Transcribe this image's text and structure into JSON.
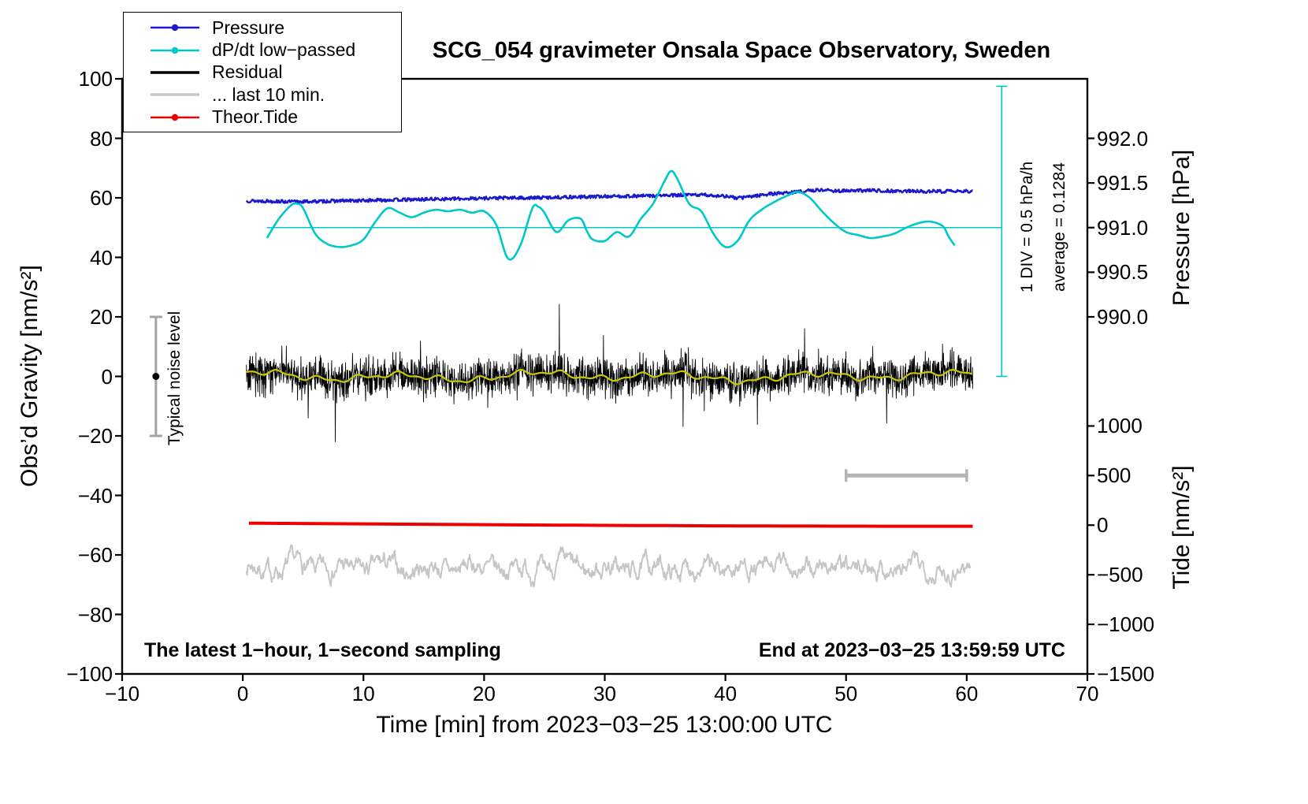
{
  "title": "SCG_054 gravimeter Onsala Space Observatory, Sweden",
  "chart_data": {
    "type": "line",
    "title": "SCG_054 gravimeter Onsala Space Observatory, Sweden",
    "x_unit": "minutes from 2023-03-25 13:00:00 UTC",
    "axes": {
      "x": {
        "label": "Time [min] from 2023−03−25 13:00:00 UTC",
        "min": -10,
        "max": 70,
        "ticks": [
          -10,
          0,
          10,
          20,
          30,
          40,
          50,
          60,
          70
        ],
        "tick_labels": [
          "−10",
          "0",
          "10",
          "20",
          "30",
          "40",
          "50",
          "60",
          "70"
        ]
      },
      "y_left": {
        "label": "Obs’d Gravity [nm/s²]",
        "min": -100,
        "max": 100,
        "ticks": [
          -100,
          -80,
          -60,
          -40,
          -20,
          0,
          20,
          40,
          60,
          80,
          100
        ],
        "tick_labels": [
          "−100",
          "−80",
          "−60",
          "−40",
          "−20",
          "0",
          "20",
          "40",
          "60",
          "80",
          "100"
        ]
      },
      "y_right_pressure": {
        "label": "Pressure [hPa]",
        "tick_labels": [
          "992.0",
          "991.5",
          "991.0",
          "990.5",
          "990.0"
        ],
        "tick_values_hPa": [
          992.0,
          991.5,
          991.0,
          990.5,
          990.0
        ],
        "gravity_positions": [
          80,
          65,
          50,
          35,
          20
        ]
      },
      "y_right_tide": {
        "label": "Tide [nm/s²]",
        "tick_labels": [
          "1000",
          "500",
          "0",
          "−500",
          "−1000",
          "−1500"
        ],
        "tick_values": [
          1000,
          500,
          0,
          -500,
          -1000,
          -1500
        ],
        "gravity_positions": [
          -16.67,
          -33.33,
          -50,
          -66.67,
          -83.33,
          -100
        ]
      }
    },
    "legend": {
      "items": [
        {
          "label": "Pressure",
          "color": "#1a1acc",
          "marker": "line-dot"
        },
        {
          "label": "dP/dt low−passed",
          "color": "#00c8c8",
          "marker": "line-dot"
        },
        {
          "label": "Residual",
          "color": "#000000",
          "marker": "line"
        },
        {
          "label": "... last 10 min.",
          "color": "#c6c6c6",
          "marker": "line"
        },
        {
          "label": "Theor.Tide",
          "color": "#ee0000",
          "marker": "line-dot"
        }
      ]
    },
    "annotations": {
      "noise_bar": {
        "label": "Typical noise level",
        "x": -7.2,
        "y_min": -20,
        "y_max": 20,
        "dot_y": 0,
        "color": "#a3a3a3"
      },
      "div_marker": {
        "line1": "1 DIV = 0.5 hPa/h",
        "line2": "average = 0.1284",
        "x": 62.9,
        "y_min": 0,
        "y_max": 97.5,
        "color": "#00c8c8"
      },
      "dpdt_zero_line": {
        "y": 50,
        "x_min": 2,
        "x_max": 62.9,
        "color": "#00c8c8"
      },
      "scale_bar": {
        "x_min": 50,
        "x_max": 60,
        "y": -33.3,
        "color": "#b4b4b4"
      },
      "sampling_note": "The latest 1−hour, 1−second sampling",
      "end_note": "End at 2023−03−25 13:59:59 UTC"
    },
    "series": [
      {
        "name": "Pressure",
        "unit": "hPa",
        "axis": "right_pressure",
        "color": "#1a1acc",
        "style": "dense dotted line",
        "gravity_map": "gravity = 50 + (hPa − 991) × 30",
        "x": [
          0.3,
          2,
          4,
          6,
          8,
          10,
          12,
          14,
          16,
          18,
          20,
          22,
          24,
          26,
          28,
          30,
          32,
          34,
          36,
          38,
          40,
          41,
          42,
          43,
          44,
          45,
          46,
          47,
          48,
          49,
          50,
          52,
          54,
          56,
          58,
          60.5
        ],
        "values": [
          991.3,
          991.297,
          991.29,
          991.293,
          991.3,
          991.303,
          991.31,
          991.313,
          991.32,
          991.323,
          991.33,
          991.333,
          991.333,
          991.34,
          991.343,
          991.35,
          991.353,
          991.357,
          991.363,
          991.367,
          991.353,
          991.33,
          991.347,
          991.367,
          991.38,
          991.39,
          991.4,
          991.413,
          991.423,
          991.413,
          991.41,
          991.417,
          991.41,
          991.407,
          991.407,
          991.407
        ],
        "scatter_noise_hPa": 0.018
      },
      {
        "name": "dP/dt low-passed",
        "unit": "hPa/h",
        "axis": "gravity axis, zero line at gravity 50, 1 DIV = 0.5 hPa/h (15 gravity units)",
        "color": "#00c8c8",
        "average": 0.1284,
        "gravity_map": "gravity = 50 + value × 30",
        "x": [
          2,
          3,
          4,
          4.5,
          5,
          6,
          7,
          8,
          9,
          10,
          11,
          12,
          13,
          14,
          15,
          16,
          17,
          18,
          19,
          20,
          21,
          22,
          23,
          24,
          24.5,
          25,
          26,
          27,
          28,
          28.5,
          29,
          30,
          31,
          32,
          33,
          34,
          35,
          35.5,
          36,
          37,
          38,
          39,
          40,
          41,
          42,
          43,
          44,
          45,
          46,
          47,
          48,
          49,
          50,
          51,
          52,
          53,
          54,
          55,
          56,
          57,
          58,
          58.5,
          59
        ],
        "values": [
          -0.117,
          0.1,
          0.25,
          0.267,
          0.217,
          -0.067,
          -0.183,
          -0.217,
          -0.2,
          -0.133,
          0.067,
          0.217,
          0.167,
          0.117,
          0.167,
          0.2,
          0.183,
          0.2,
          0.167,
          0.183,
          0.033,
          -0.35,
          -0.2,
          0.217,
          0.233,
          0.167,
          -0.05,
          0.083,
          0.1,
          -0.033,
          -0.133,
          -0.15,
          -0.05,
          -0.1,
          0.1,
          0.267,
          0.533,
          0.633,
          0.55,
          0.267,
          0.183,
          -0.067,
          -0.217,
          -0.15,
          0.083,
          0.2,
          0.283,
          0.35,
          0.4,
          0.333,
          0.183,
          0.05,
          -0.05,
          -0.083,
          -0.117,
          -0.1,
          -0.067,
          0,
          0.05,
          0.067,
          0.017,
          -0.1,
          -0.2
        ]
      },
      {
        "name": "Residual",
        "unit": "nm/s²",
        "axis": "left_gravity",
        "color": "#000000",
        "style": "1-second noise band",
        "center": 0,
        "typical_band": 8,
        "max_spike": 18
      },
      {
        "name": "Residual low-passed",
        "unit": "nm/s²",
        "axis": "left_gravity",
        "color": "#c8c800",
        "style": "smoothed residual (yellow)",
        "center": 0,
        "amplitude": 2
      },
      {
        "name": "... last 10 min.",
        "unit": "nm/s²",
        "axis": "left_gravity",
        "color": "#c6c6c6",
        "style": "noise band offset for display",
        "center": -64.5,
        "amplitude": 6
      },
      {
        "name": "Theor.Tide",
        "unit": "nm/s²",
        "axis": "right_tide",
        "color": "#ee0000",
        "gravity_map": "gravity = −50 + tide / 30",
        "x": [
          0.5,
          10,
          20,
          30,
          40,
          50,
          60.5
        ],
        "values": [
          20,
          13,
          5,
          -2,
          -7,
          -10,
          -11
        ]
      }
    ]
  }
}
